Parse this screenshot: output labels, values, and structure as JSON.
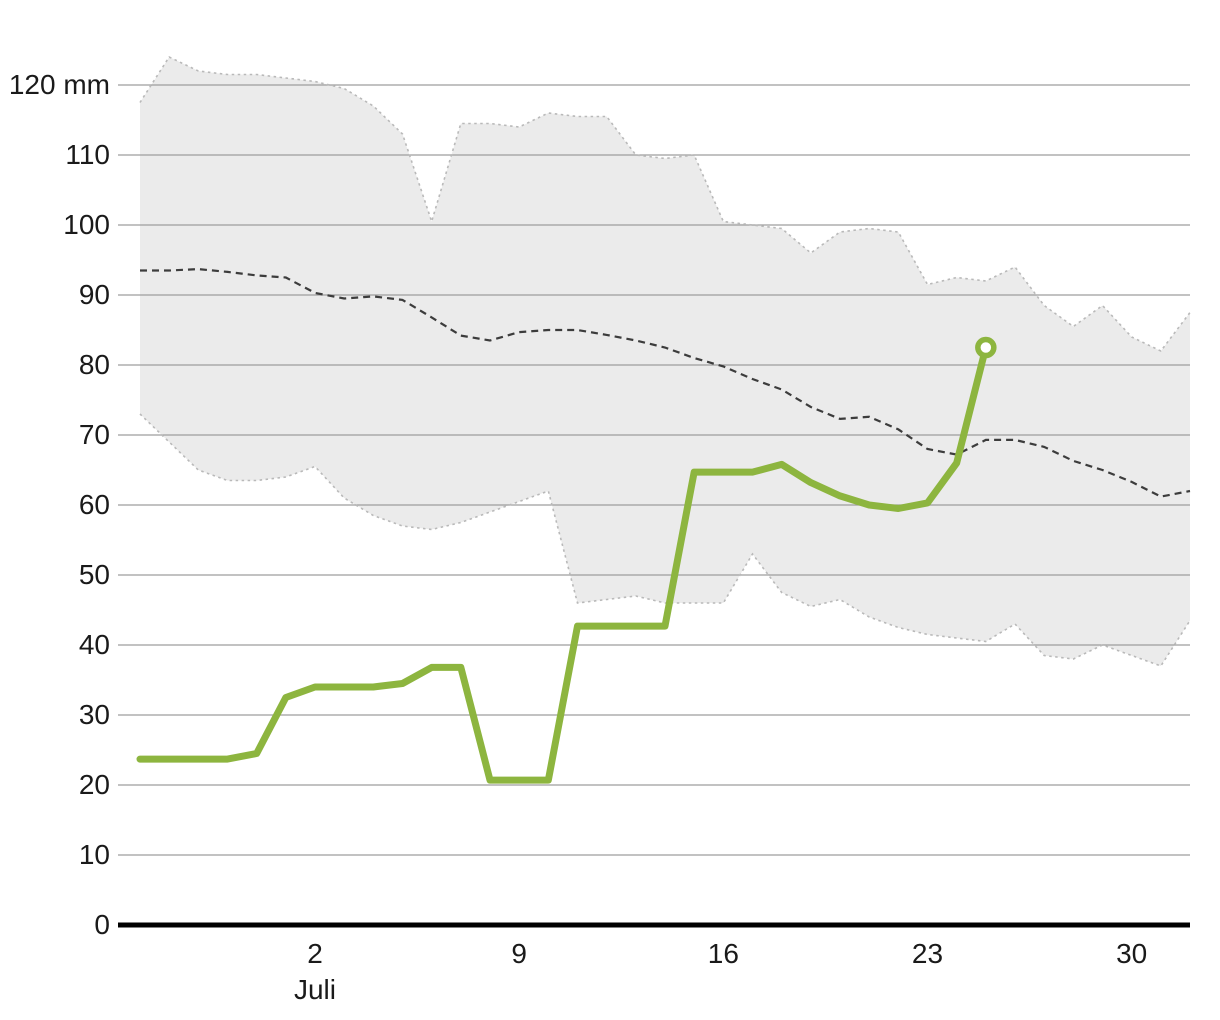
{
  "chart_data": {
    "type": "line",
    "title": "",
    "background": "#ffffff",
    "grid_color": "#9d9d9d",
    "axis_color": "#000000",
    "text_color": "#1a1a1a",
    "y_axis": {
      "unit": "mm",
      "min": 0,
      "max": 120,
      "step": 10,
      "ticks": [
        {
          "value": 0,
          "label": "0"
        },
        {
          "value": 10,
          "label": "10"
        },
        {
          "value": 20,
          "label": "20"
        },
        {
          "value": 30,
          "label": "30"
        },
        {
          "value": 40,
          "label": "40"
        },
        {
          "value": 50,
          "label": "50"
        },
        {
          "value": 60,
          "label": "60"
        },
        {
          "value": 70,
          "label": "70"
        },
        {
          "value": 80,
          "label": "80"
        },
        {
          "value": 90,
          "label": "90"
        },
        {
          "value": 100,
          "label": "100"
        },
        {
          "value": 110,
          "label": "110"
        },
        {
          "value": 120,
          "label": "120 mm"
        }
      ]
    },
    "x_axis": {
      "month_label": "Juli",
      "n_points": 37,
      "ticks": [
        {
          "index": 6,
          "label": "2"
        },
        {
          "index": 13,
          "label": "9"
        },
        {
          "index": 20,
          "label": "16"
        },
        {
          "index": 27,
          "label": "23"
        },
        {
          "index": 34,
          "label": "30"
        }
      ]
    },
    "series": [
      {
        "name": "historical-range",
        "type": "band",
        "fill": "#ebebeb",
        "edge_color": "#b9b9b9",
        "upper": [
          117.5,
          124,
          122,
          121.5,
          121.5,
          121,
          120.5,
          119.5,
          117,
          113,
          100.5,
          114.5,
          114.5,
          114,
          116,
          115.5,
          115.5,
          110,
          109.5,
          110,
          100.5,
          100,
          99.5,
          96,
          99,
          99.5,
          99,
          91.5,
          92.5,
          92,
          94,
          88.5,
          85.5,
          88.5,
          84,
          82,
          87.5
        ],
        "lower": [
          73,
          69,
          65,
          63.5,
          63.5,
          64,
          65.5,
          61,
          58.5,
          57,
          56.5,
          57.5,
          59,
          60.5,
          62,
          46,
          46.5,
          47,
          46,
          46,
          46,
          53,
          47.5,
          45.5,
          46.5,
          44,
          42.5,
          41.5,
          41,
          40.5,
          43,
          38.5,
          38,
          40,
          38.5,
          37,
          43.5
        ]
      },
      {
        "name": "reference-mean",
        "type": "line",
        "style": "dashed",
        "color": "#3c3c3c",
        "values": [
          93.5,
          93.5,
          93.7,
          93.3,
          92.8,
          92.5,
          90.3,
          89.5,
          89.8,
          89.3,
          86.8,
          84.2,
          83.5,
          84.7,
          85,
          85,
          84.3,
          83.5,
          82.5,
          81,
          79.8,
          78,
          76.5,
          74,
          72.3,
          72.6,
          70.8,
          68,
          67.2,
          69.3,
          69.3,
          68.3,
          66.3,
          65,
          63.3,
          61.2,
          62
        ]
      },
      {
        "name": "current-observed",
        "type": "line",
        "style": "solid",
        "color": "#8db53f",
        "end_marker": true,
        "values": [
          23.7,
          23.7,
          23.7,
          23.7,
          24.5,
          32.5,
          34,
          34,
          34,
          34.5,
          36.8,
          36.8,
          20.7,
          20.7,
          20.7,
          42.7,
          42.7,
          42.7,
          42.7,
          64.7,
          64.7,
          64.7,
          65.8,
          63.2,
          61.3,
          60,
          59.5,
          60.3,
          66,
          82.5
        ]
      }
    ]
  }
}
